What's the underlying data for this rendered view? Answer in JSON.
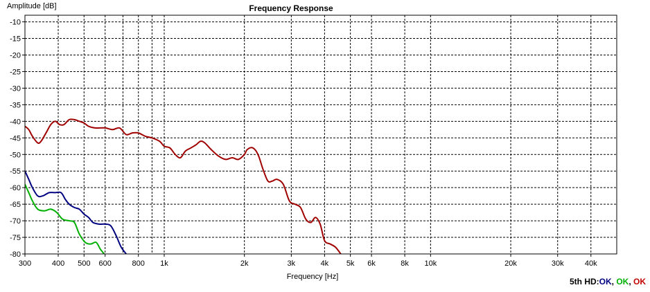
{
  "chart_data": {
    "type": "line",
    "title": "Frequency Response",
    "xlabel": "Frequency [Hz]",
    "ylabel": "Amplitude [dB]",
    "xscale": "log",
    "xlim": [
      300,
      50000
    ],
    "ylim": [
      -80,
      -8
    ],
    "grid": true,
    "y_ticks": [
      -10,
      -15,
      -20,
      -25,
      -30,
      -35,
      -40,
      -45,
      -50,
      -55,
      -60,
      -65,
      -70,
      -75,
      -80
    ],
    "x_ticks": [
      {
        "value": 300,
        "label": "300"
      },
      {
        "value": 400,
        "label": "400"
      },
      {
        "value": 500,
        "label": "500"
      },
      {
        "value": 600,
        "label": "600"
      },
      {
        "value": 800,
        "label": "800"
      },
      {
        "value": 1000,
        "label": "1k"
      },
      {
        "value": 2000,
        "label": "2k"
      },
      {
        "value": 3000,
        "label": "3k"
      },
      {
        "value": 4000,
        "label": "4k"
      },
      {
        "value": 5000,
        "label": "5k"
      },
      {
        "value": 6000,
        "label": "6k"
      },
      {
        "value": 8000,
        "label": "8k"
      },
      {
        "value": 10000,
        "label": "10k"
      },
      {
        "value": 20000,
        "label": "20k"
      },
      {
        "value": 30000,
        "label": "30k"
      },
      {
        "value": 40000,
        "label": "40k"
      }
    ],
    "minor_grid_x": [
      700,
      900
    ],
    "series": [
      {
        "color": "#a00000",
        "points": [
          [
            300,
            -41.5
          ],
          [
            310,
            -42.5
          ],
          [
            320,
            -44.5
          ],
          [
            335,
            -46.5
          ],
          [
            345,
            -46
          ],
          [
            360,
            -43.5
          ],
          [
            375,
            -41
          ],
          [
            390,
            -40
          ],
          [
            405,
            -41
          ],
          [
            420,
            -41
          ],
          [
            440,
            -39.5
          ],
          [
            460,
            -39.5
          ],
          [
            480,
            -40
          ],
          [
            500,
            -40.5
          ],
          [
            520,
            -41.5
          ],
          [
            550,
            -42
          ],
          [
            600,
            -42
          ],
          [
            640,
            -42.5
          ],
          [
            680,
            -42
          ],
          [
            720,
            -44
          ],
          [
            760,
            -43.5
          ],
          [
            800,
            -43.5
          ],
          [
            850,
            -44.5
          ],
          [
            900,
            -45
          ],
          [
            960,
            -46
          ],
          [
            1000,
            -47.5
          ],
          [
            1050,
            -48
          ],
          [
            1100,
            -50
          ],
          [
            1150,
            -51
          ],
          [
            1200,
            -49
          ],
          [
            1260,
            -48
          ],
          [
            1320,
            -47
          ],
          [
            1370,
            -46
          ],
          [
            1420,
            -46.5
          ],
          [
            1500,
            -48.5
          ],
          [
            1600,
            -50.5
          ],
          [
            1700,
            -51.5
          ],
          [
            1800,
            -51
          ],
          [
            1900,
            -51.5
          ],
          [
            2000,
            -50
          ],
          [
            2050,
            -48.5
          ],
          [
            2150,
            -48
          ],
          [
            2250,
            -50
          ],
          [
            2350,
            -54.5
          ],
          [
            2450,
            -58
          ],
          [
            2550,
            -58
          ],
          [
            2650,
            -57.5
          ],
          [
            2800,
            -59
          ],
          [
            2950,
            -64
          ],
          [
            3100,
            -65
          ],
          [
            3250,
            -66
          ],
          [
            3400,
            -69.5
          ],
          [
            3550,
            -70.5
          ],
          [
            3700,
            -69
          ],
          [
            3850,
            -71
          ],
          [
            4000,
            -76
          ],
          [
            4200,
            -77
          ],
          [
            4400,
            -78
          ],
          [
            4600,
            -80
          ]
        ]
      },
      {
        "color": "#000080",
        "points": [
          [
            300,
            -55
          ],
          [
            310,
            -57.5
          ],
          [
            320,
            -60
          ],
          [
            335,
            -62.5
          ],
          [
            350,
            -62.5
          ],
          [
            370,
            -61.5
          ],
          [
            390,
            -61.5
          ],
          [
            410,
            -61.5
          ],
          [
            425,
            -63.5
          ],
          [
            440,
            -65
          ],
          [
            460,
            -66
          ],
          [
            480,
            -66.5
          ],
          [
            500,
            -68
          ],
          [
            520,
            -69
          ],
          [
            540,
            -70.5
          ],
          [
            570,
            -71
          ],
          [
            600,
            -71
          ],
          [
            630,
            -71.5
          ],
          [
            660,
            -74.5
          ],
          [
            690,
            -78
          ],
          [
            720,
            -80
          ]
        ]
      },
      {
        "color": "#00b000",
        "points": [
          [
            300,
            -59
          ],
          [
            310,
            -61.5
          ],
          [
            320,
            -64
          ],
          [
            335,
            -66.5
          ],
          [
            355,
            -67
          ],
          [
            375,
            -66.5
          ],
          [
            395,
            -67.5
          ],
          [
            415,
            -69.5
          ],
          [
            440,
            -70
          ],
          [
            460,
            -70.5
          ],
          [
            480,
            -74
          ],
          [
            505,
            -76.5
          ],
          [
            530,
            -77
          ],
          [
            555,
            -76.5
          ],
          [
            575,
            -78.5
          ],
          [
            595,
            -80
          ]
        ]
      }
    ]
  },
  "status": {
    "prefix": "5th HD:",
    "items": [
      {
        "text": "OK",
        "color": "#000080"
      },
      {
        "text": ", ",
        "color": "#000000"
      },
      {
        "text": "OK",
        "color": "#00b000"
      },
      {
        "text": ", ",
        "color": "#000000"
      },
      {
        "text": "OK",
        "color": "#c00000"
      }
    ]
  }
}
